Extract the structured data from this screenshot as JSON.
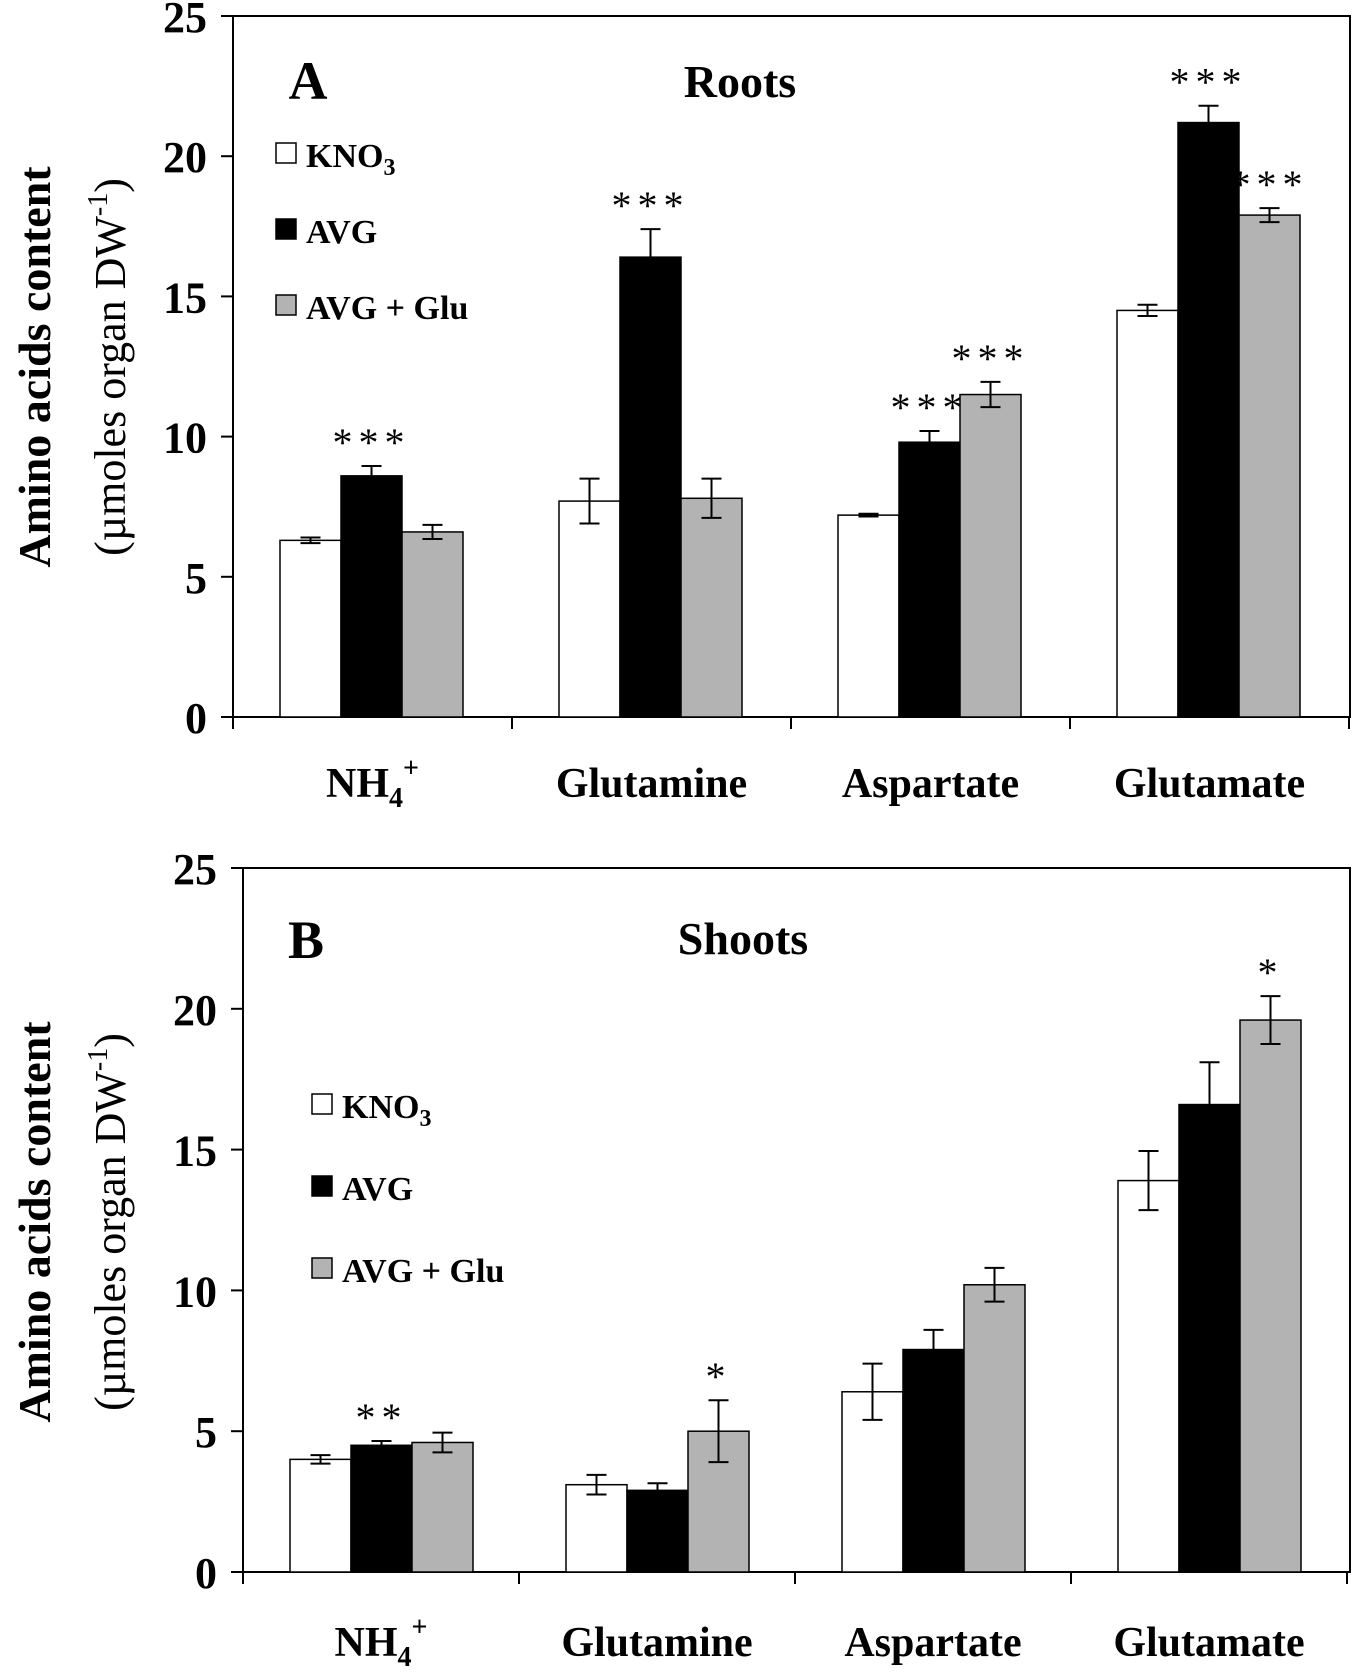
{
  "chart_data": [
    {
      "type": "bar",
      "panel_label": "A",
      "title": "Roots",
      "ylabel_line1": "Amino acids content",
      "ylabel_line2": "(µmoles organ DW",
      "ylabel_sup": "-1",
      "ylabel_close": ")",
      "ylim": [
        0,
        25
      ],
      "yticks": [
        "0",
        "5",
        "10",
        "15",
        "20",
        "25"
      ],
      "categories": [
        {
          "main": "NH",
          "sub": "4",
          "sup": "+"
        },
        {
          "main": "Glutamine",
          "sub": "",
          "sup": ""
        },
        {
          "main": "Aspartate",
          "sub": "",
          "sup": ""
        },
        {
          "main": "Glutamate",
          "sub": "",
          "sup": ""
        }
      ],
      "legend": [
        {
          "main": "KNO",
          "sub": "3"
        },
        {
          "main": "AVG",
          "sub": ""
        },
        {
          "main": "AVG + Glu",
          "sub": ""
        }
      ],
      "legend_position": "top-left",
      "series": [
        {
          "name": "KNO3",
          "color": "#ffffff",
          "values": [
            6.3,
            7.7,
            7.2,
            14.5
          ],
          "errors": [
            0.1,
            0.8,
            0.05,
            0.2
          ],
          "significance": [
            "",
            "",
            "",
            ""
          ]
        },
        {
          "name": "AVG",
          "color": "#000000",
          "values": [
            8.6,
            16.4,
            9.8,
            21.2
          ],
          "errors": [
            0.35,
            1.0,
            0.4,
            0.6
          ],
          "significance": [
            "***",
            "***",
            "***",
            "***"
          ]
        },
        {
          "name": "AVG + Glu",
          "color": "#b3b3b3",
          "values": [
            6.6,
            7.8,
            11.5,
            17.9
          ],
          "errors": [
            0.25,
            0.7,
            0.45,
            0.25
          ],
          "significance": [
            "",
            "",
            "***",
            "***"
          ]
        }
      ]
    },
    {
      "type": "bar",
      "panel_label": "B",
      "title": "Shoots",
      "ylabel_line1": "Amino acids content",
      "ylabel_line2": "(µmoles organ DW",
      "ylabel_sup": "-1",
      "ylabel_close": ")",
      "ylim": [
        0,
        25
      ],
      "yticks": [
        "0",
        "5",
        "10",
        "15",
        "20",
        "25"
      ],
      "categories": [
        {
          "main": "NH",
          "sub": "4",
          "sup": "+"
        },
        {
          "main": "Glutamine",
          "sub": "",
          "sup": ""
        },
        {
          "main": "Aspartate",
          "sub": "",
          "sup": ""
        },
        {
          "main": "Glutamate",
          "sub": "",
          "sup": ""
        }
      ],
      "legend": [
        {
          "main": "KNO",
          "sub": "3"
        },
        {
          "main": "AVG",
          "sub": ""
        },
        {
          "main": "AVG + Glu",
          "sub": ""
        }
      ],
      "legend_position": "middle-left",
      "series": [
        {
          "name": "KNO3",
          "color": "#ffffff",
          "values": [
            4.0,
            3.1,
            6.4,
            13.9
          ],
          "errors": [
            0.15,
            0.35,
            1.0,
            1.05
          ],
          "significance": [
            "",
            "",
            "",
            ""
          ]
        },
        {
          "name": "AVG",
          "color": "#000000",
          "values": [
            4.5,
            2.9,
            7.9,
            16.6
          ],
          "errors": [
            0.15,
            0.25,
            0.7,
            1.5
          ],
          "significance": [
            "**",
            "",
            "",
            ""
          ]
        },
        {
          "name": "AVG + Glu",
          "color": "#b3b3b3",
          "values": [
            4.6,
            5.0,
            10.2,
            19.6
          ],
          "errors": [
            0.35,
            1.1,
            0.6,
            0.85
          ],
          "significance": [
            "",
            "*",
            "",
            "*"
          ]
        }
      ]
    }
  ]
}
